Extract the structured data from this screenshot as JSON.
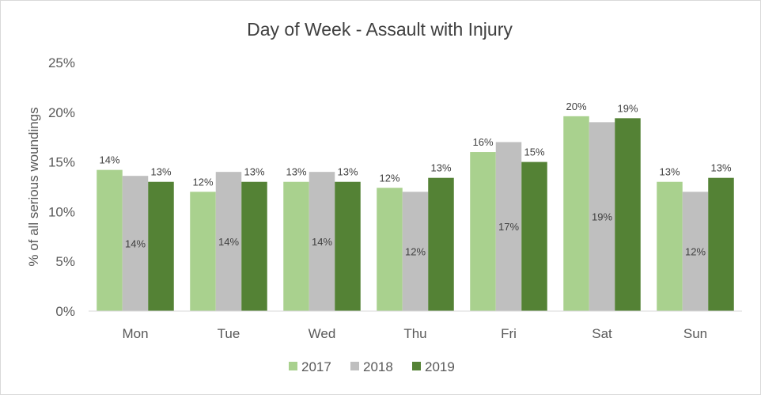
{
  "chart_data": {
    "type": "bar",
    "title": "Day of Week - Assault with Injury",
    "xlabel": "",
    "ylabel": "% of all serious woundings",
    "ylim": [
      0,
      25
    ],
    "yticks": [
      "0%",
      "5%",
      "10%",
      "15%",
      "20%",
      "25%"
    ],
    "grid": false,
    "legend_position": "bottom",
    "categories": [
      "Mon",
      "Tue",
      "Wed",
      "Thu",
      "Fri",
      "Sat",
      "Sun"
    ],
    "series": [
      {
        "name": "2017",
        "color": "#a9d18e",
        "values": [
          14.2,
          12.0,
          13.0,
          12.4,
          16.0,
          19.6,
          13.0
        ],
        "labels": [
          "14%",
          "12%",
          "13%",
          "12%",
          "16%",
          "20%",
          "13%"
        ],
        "label_position": "above"
      },
      {
        "name": "2018",
        "color": "#bfbfbf",
        "values": [
          13.6,
          14.0,
          14.0,
          12.0,
          17.0,
          19.0,
          12.0
        ],
        "labels": [
          "14%",
          "14%",
          "14%",
          "12%",
          "17%",
          "19%",
          "12%"
        ],
        "label_position": "inside"
      },
      {
        "name": "2019",
        "color": "#548235",
        "values": [
          13.0,
          13.0,
          13.0,
          13.4,
          15.0,
          19.4,
          13.4
        ],
        "labels": [
          "13%",
          "13%",
          "13%",
          "13%",
          "15%",
          "19%",
          "13%"
        ],
        "label_position": "above"
      }
    ]
  }
}
